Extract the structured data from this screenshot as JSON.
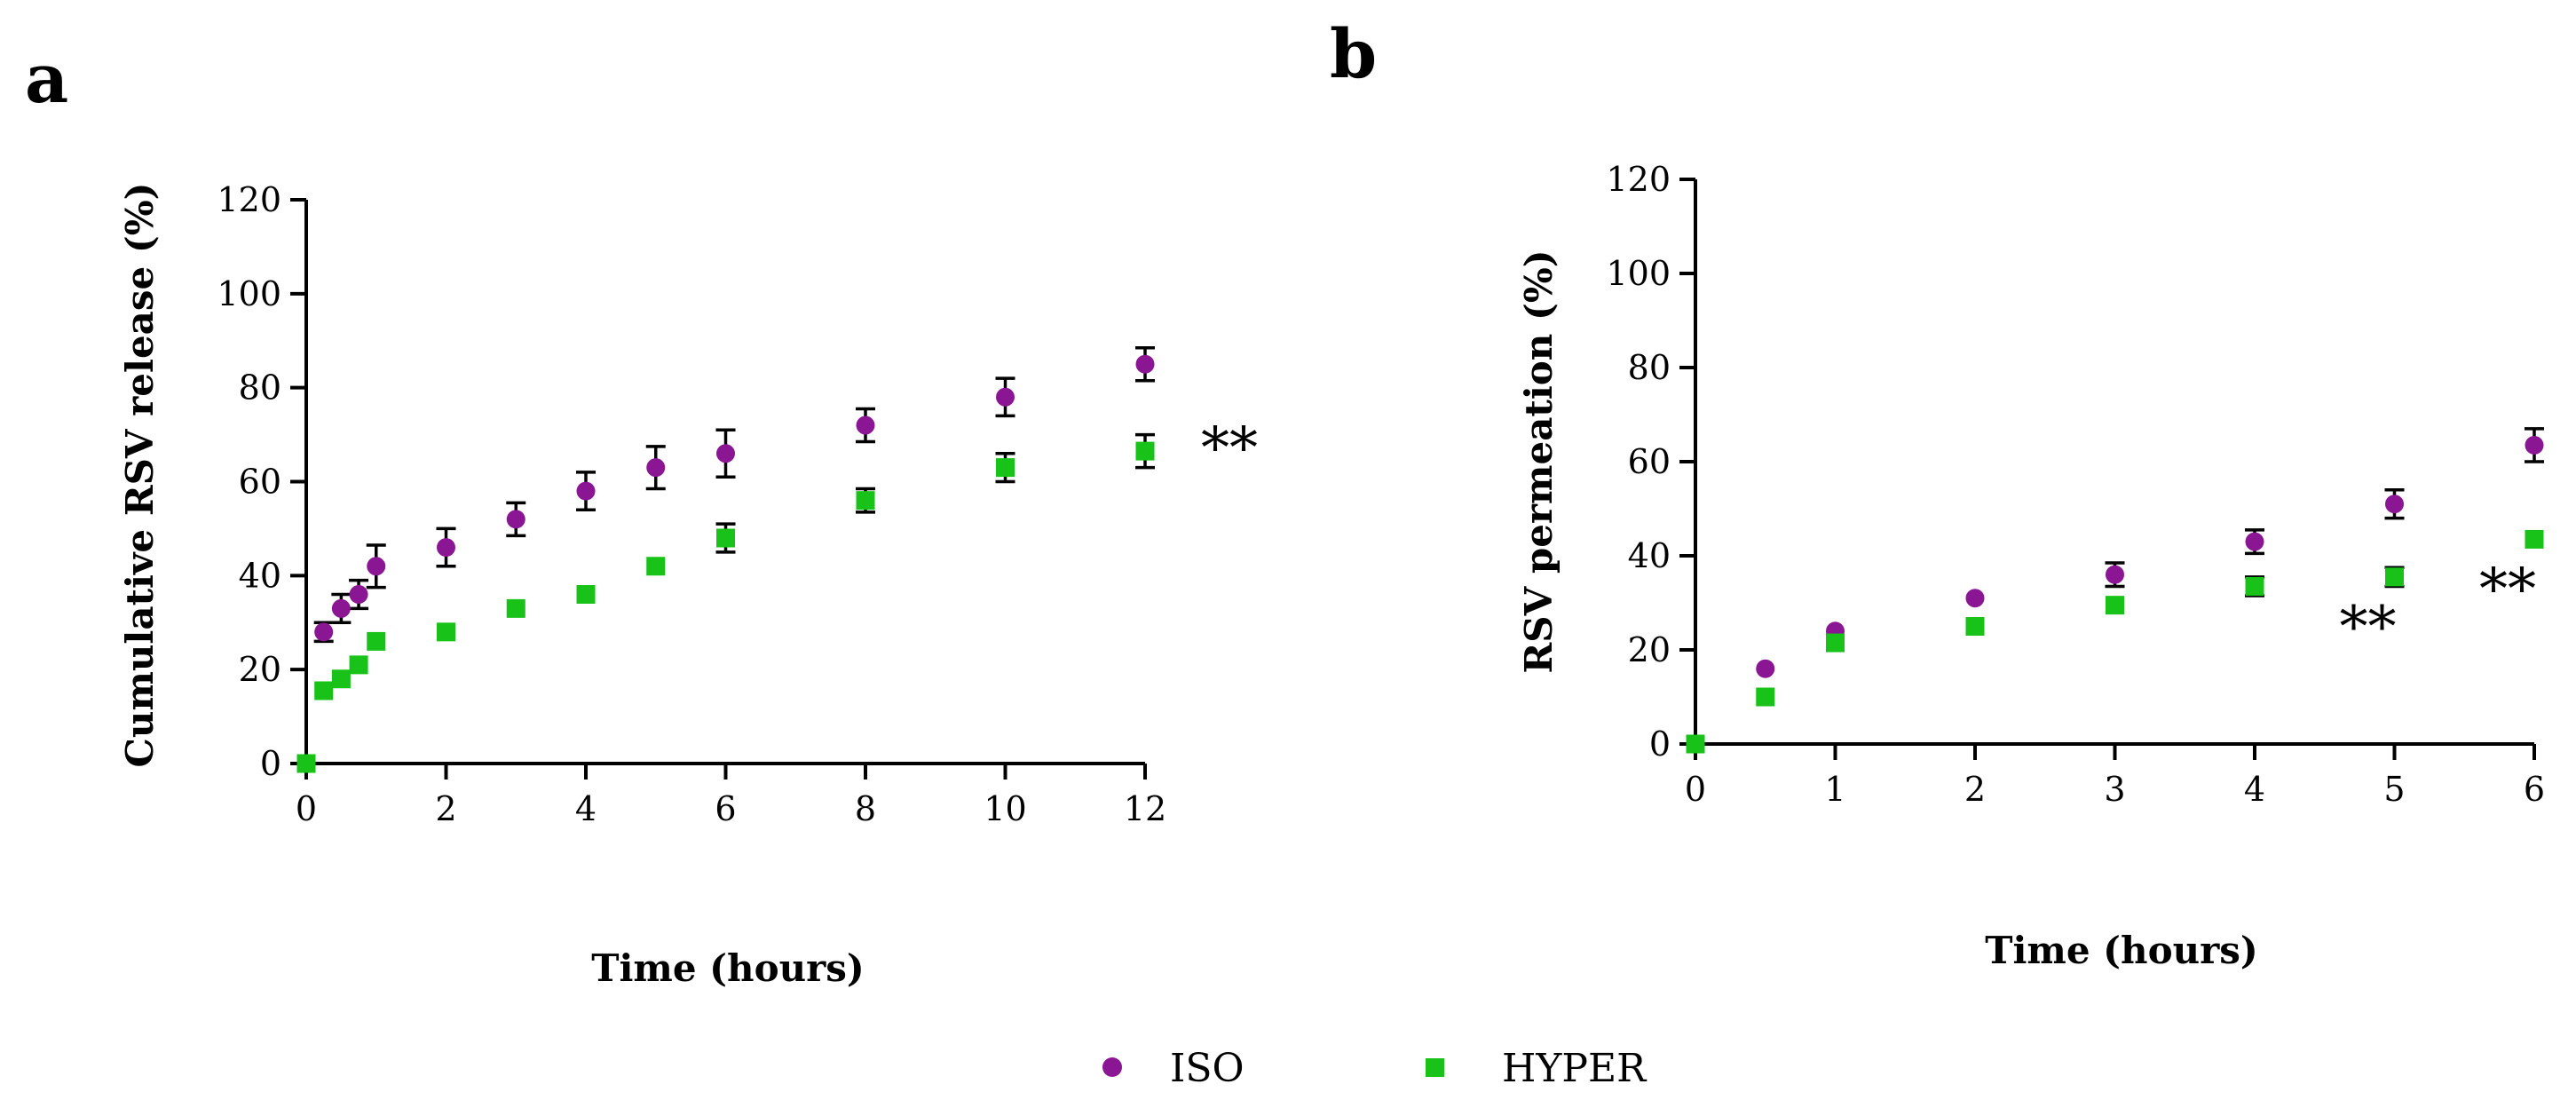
{
  "legend": {
    "items": [
      {
        "label": "ISO",
        "color": "#8a1694",
        "marker": "circle"
      },
      {
        "label": "HYPER",
        "color": "#19c219",
        "marker": "square"
      }
    ]
  },
  "chart_data": [
    {
      "panel": "a",
      "type": "scatter",
      "xlabel": "Time (hours)",
      "ylabel": "Cumulative RSV release (%)",
      "xlim": [
        0,
        12
      ],
      "ylim": [
        0,
        120
      ],
      "xticks": [
        0,
        2,
        4,
        6,
        8,
        10,
        12
      ],
      "yticks": [
        0,
        20,
        40,
        60,
        80,
        100,
        120
      ],
      "grid": false,
      "significance": [
        {
          "x": 12,
          "label": "**"
        }
      ],
      "series": [
        {
          "name": "ISO",
          "color": "#8a1694",
          "marker": "circle",
          "x": [
            0,
            0.25,
            0.5,
            0.75,
            1,
            2,
            3,
            4,
            5,
            6,
            8,
            10,
            12
          ],
          "y": [
            0,
            28,
            33,
            36,
            42,
            46,
            52,
            58,
            63,
            66,
            72,
            78,
            85
          ],
          "err": [
            0,
            2,
            3,
            3,
            4.5,
            4,
            3.5,
            4,
            4.5,
            5,
            3.5,
            4,
            3.5
          ]
        },
        {
          "name": "HYPER",
          "color": "#19c219",
          "marker": "square",
          "x": [
            0,
            0.25,
            0.5,
            0.75,
            1,
            2,
            3,
            4,
            5,
            6,
            8,
            10,
            12
          ],
          "y": [
            0,
            15.5,
            18,
            21,
            26,
            28,
            33,
            36,
            42,
            48,
            56,
            63,
            66.5
          ],
          "err": [
            0,
            0,
            0,
            0,
            0,
            0,
            0,
            0,
            0,
            3,
            2.5,
            3,
            3.5
          ]
        }
      ]
    },
    {
      "panel": "b",
      "type": "scatter",
      "xlabel": "Time (hours)",
      "ylabel": "RSV permeation (%)",
      "xlim": [
        0,
        6
      ],
      "ylim": [
        0,
        120
      ],
      "xticks": [
        0,
        1,
        2,
        3,
        4,
        5,
        6
      ],
      "yticks": [
        0,
        20,
        40,
        60,
        80,
        100,
        120
      ],
      "grid": false,
      "significance": [
        {
          "x": 5,
          "label": "**"
        },
        {
          "x": 6,
          "label": "**"
        }
      ],
      "series": [
        {
          "name": "ISO",
          "color": "#8a1694",
          "marker": "circle",
          "x": [
            0,
            0.5,
            1,
            2,
            3,
            4,
            5,
            6
          ],
          "y": [
            0,
            16,
            24,
            31,
            36,
            43,
            51,
            63.5
          ],
          "err": [
            0,
            0,
            0,
            0,
            2.5,
            2.5,
            3,
            3.5
          ]
        },
        {
          "name": "HYPER",
          "color": "#19c219",
          "marker": "square",
          "x": [
            0,
            0.5,
            1,
            2,
            3,
            4,
            5,
            6
          ],
          "y": [
            0,
            10,
            21.5,
            25,
            29.5,
            33.5,
            35.5,
            43.5
          ],
          "err": [
            0,
            0,
            0,
            0,
            0,
            2,
            2,
            0
          ]
        }
      ]
    }
  ]
}
